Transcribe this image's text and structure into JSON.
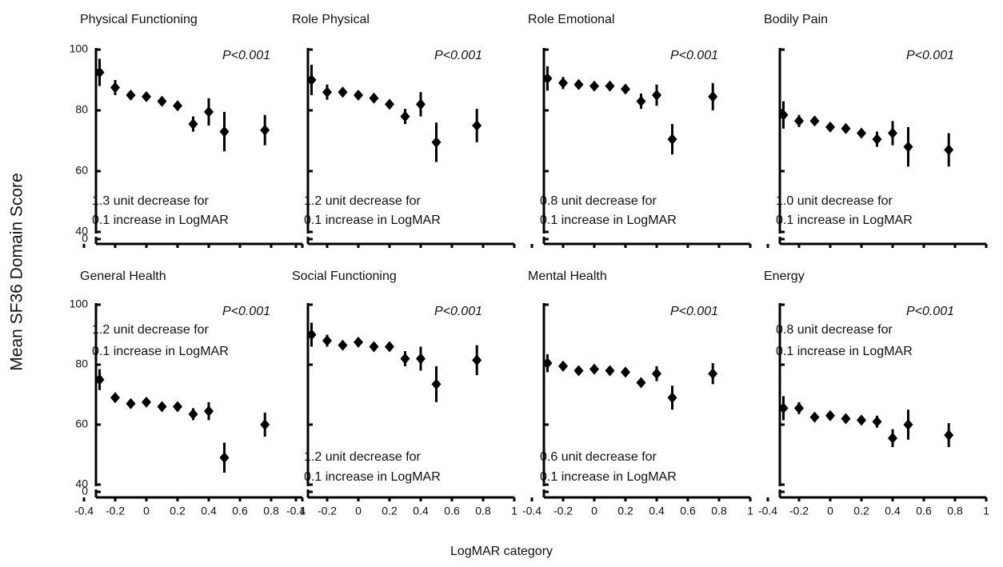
{
  "y_label": "Mean SF36 Domain Score",
  "x_label": "LogMAR category",
  "chart_data": [
    {
      "type": "scatter",
      "title": "Physical Functioning",
      "p_value": "P<0.001",
      "note": [
        "1.3 unit decrease for",
        "0.1 increase in LogMAR"
      ],
      "note_position": "bottom",
      "x": [
        -0.3,
        -0.2,
        -0.1,
        0,
        0.1,
        0.2,
        0.3,
        0.4,
        0.5,
        0.76
      ],
      "values": [
        92.5,
        87.5,
        85,
        84.5,
        83,
        81.5,
        75.5,
        79.5,
        73,
        73.5
      ],
      "errors": [
        4.5,
        2.5,
        1,
        1,
        1,
        1,
        2.5,
        4.5,
        6.5,
        5
      ],
      "xlim": [
        -0.4,
        1
      ],
      "xticks": [
        -0.4,
        -0.2,
        0,
        0.2,
        0.4,
        0.6,
        0.8,
        1
      ],
      "ylim": [
        40,
        100
      ],
      "yticks": [
        40,
        60,
        80,
        100
      ],
      "y_break_tick": 0,
      "color": "#000000"
    },
    {
      "type": "scatter",
      "title": "Role Physical",
      "p_value": "P<0.001",
      "note": [
        "1.2 unit decrease for",
        "0.1 increase in LogMAR"
      ],
      "note_position": "bottom",
      "x": [
        -0.3,
        -0.2,
        -0.1,
        0,
        0.1,
        0.2,
        0.3,
        0.4,
        0.5,
        0.76
      ],
      "values": [
        90,
        86,
        86,
        85,
        84,
        82,
        78,
        82,
        69.5,
        75
      ],
      "errors": [
        5,
        2.5,
        1.5,
        1,
        1,
        1,
        2.5,
        4,
        6.5,
        5.5
      ],
      "xlim": [
        -0.4,
        1
      ],
      "xticks": [
        -0.4,
        -0.2,
        0,
        0.2,
        0.4,
        0.6,
        0.8,
        1
      ],
      "ylim": [
        40,
        100
      ],
      "yticks": [
        40,
        60,
        80,
        100
      ],
      "y_break_tick": 0,
      "color": "#000000"
    },
    {
      "type": "scatter",
      "title": "Role Emotional",
      "p_value": "P<0.001",
      "note": [
        "0.8 unit decrease for",
        "0.1 increase in LogMAR"
      ],
      "note_position": "bottom",
      "x": [
        -0.3,
        -0.2,
        -0.1,
        0,
        0.1,
        0.2,
        0.3,
        0.4,
        0.5,
        0.76
      ],
      "values": [
        90.5,
        89,
        88.5,
        88,
        88,
        87,
        83,
        85,
        70.5,
        84.5
      ],
      "errors": [
        4,
        2,
        1.5,
        1,
        1,
        1,
        2.5,
        3.5,
        5,
        4.5
      ],
      "xlim": [
        -0.4,
        1
      ],
      "xticks": [
        -0.4,
        -0.2,
        0,
        0.2,
        0.4,
        0.6,
        0.8,
        1
      ],
      "ylim": [
        40,
        100
      ],
      "yticks": [
        40,
        60,
        80,
        100
      ],
      "y_break_tick": 0,
      "color": "#000000"
    },
    {
      "type": "scatter",
      "title": "Bodily Pain",
      "p_value": "P<0.001",
      "note": [
        "1.0 unit decrease for",
        "0.1 increase in LogMAR"
      ],
      "note_position": "bottom",
      "x": [
        -0.3,
        -0.2,
        -0.1,
        0,
        0.1,
        0.2,
        0.3,
        0.4,
        0.5,
        0.76
      ],
      "values": [
        78.5,
        76.5,
        76.5,
        74.5,
        74,
        72.5,
        70.5,
        72.5,
        68,
        67
      ],
      "errors": [
        4.5,
        2,
        1,
        1,
        1,
        1,
        2.5,
        4,
        6.5,
        5.5
      ],
      "xlim": [
        -0.4,
        1
      ],
      "xticks": [
        -0.4,
        -0.2,
        0,
        0.2,
        0.4,
        0.6,
        0.8,
        1
      ],
      "ylim": [
        40,
        100
      ],
      "yticks": [
        40,
        60,
        80,
        100
      ],
      "y_break_tick": 0,
      "color": "#000000"
    },
    {
      "type": "scatter",
      "title": "General Health",
      "p_value": "P<0.001",
      "note": [
        "1.2 unit decrease for",
        "0.1 increase in LogMAR"
      ],
      "note_position": "top",
      "x": [
        -0.3,
        -0.2,
        -0.1,
        0,
        0.1,
        0.2,
        0.3,
        0.4,
        0.5,
        0.76
      ],
      "values": [
        75,
        69,
        67,
        67.5,
        66,
        66,
        63.5,
        64.5,
        49,
        60
      ],
      "errors": [
        3.5,
        1.5,
        1,
        1,
        1,
        1,
        2,
        3,
        5,
        4
      ],
      "xlim": [
        -0.4,
        1
      ],
      "xticks": [
        -0.4,
        -0.2,
        0,
        0.2,
        0.4,
        0.6,
        0.8,
        1
      ],
      "ylim": [
        40,
        100
      ],
      "yticks": [
        40,
        60,
        80,
        100
      ],
      "y_break_tick": 0,
      "color": "#000000"
    },
    {
      "type": "scatter",
      "title": "Social Functioning",
      "p_value": "P<0.001",
      "note": [
        "1.2 unit decrease for",
        "0.1 increase in LogMAR"
      ],
      "note_position": "bottom",
      "x": [
        -0.3,
        -0.2,
        -0.1,
        0,
        0.1,
        0.2,
        0.3,
        0.4,
        0.5,
        0.76
      ],
      "values": [
        90,
        88,
        86.5,
        87.5,
        86,
        86,
        82,
        82,
        73.5,
        81.5
      ],
      "errors": [
        4,
        2,
        1,
        1,
        1,
        1,
        2.5,
        4,
        6,
        5
      ],
      "xlim": [
        -0.4,
        1
      ],
      "xticks": [
        -0.4,
        -0.2,
        0,
        0.2,
        0.4,
        0.6,
        0.8,
        1
      ],
      "ylim": [
        40,
        100
      ],
      "yticks": [
        40,
        60,
        80,
        100
      ],
      "y_break_tick": 0,
      "color": "#000000"
    },
    {
      "type": "scatter",
      "title": "Mental Health",
      "p_value": "P<0.001",
      "note": [
        "0.6 unit decrease for",
        "0.1 increase in LogMAR"
      ],
      "note_position": "bottom",
      "x": [
        -0.3,
        -0.2,
        -0.1,
        0,
        0.1,
        0.2,
        0.3,
        0.4,
        0.5,
        0.76
      ],
      "values": [
        80.5,
        79.5,
        78,
        78.5,
        78,
        77.5,
        74,
        77,
        69,
        77
      ],
      "errors": [
        3,
        1.5,
        1,
        1,
        1,
        1,
        1.5,
        2.5,
        4,
        3.5
      ],
      "xlim": [
        -0.4,
        1
      ],
      "xticks": [
        -0.4,
        -0.2,
        0,
        0.2,
        0.4,
        0.6,
        0.8,
        1
      ],
      "ylim": [
        40,
        100
      ],
      "yticks": [
        40,
        60,
        80,
        100
      ],
      "y_break_tick": 0,
      "color": "#000000"
    },
    {
      "type": "scatter",
      "title": "Energy",
      "p_value": "P<0.001",
      "note": [
        "0.8 unit decrease for",
        "0.1 increase in LogMAR"
      ],
      "note_position": "top",
      "x": [
        -0.3,
        -0.2,
        -0.1,
        0,
        0.1,
        0.2,
        0.3,
        0.4,
        0.5,
        0.76
      ],
      "values": [
        65.5,
        65.5,
        62.5,
        63,
        62,
        61.5,
        61,
        55.5,
        60,
        56.5
      ],
      "errors": [
        4,
        2,
        1,
        1,
        1,
        1,
        2,
        3,
        5,
        4
      ],
      "xlim": [
        -0.4,
        1
      ],
      "xticks": [
        -0.4,
        -0.2,
        0,
        0.2,
        0.4,
        0.6,
        0.8,
        1
      ],
      "ylim": [
        40,
        100
      ],
      "yticks": [
        40,
        60,
        80,
        100
      ],
      "y_break_tick": 0,
      "color": "#000000"
    }
  ]
}
